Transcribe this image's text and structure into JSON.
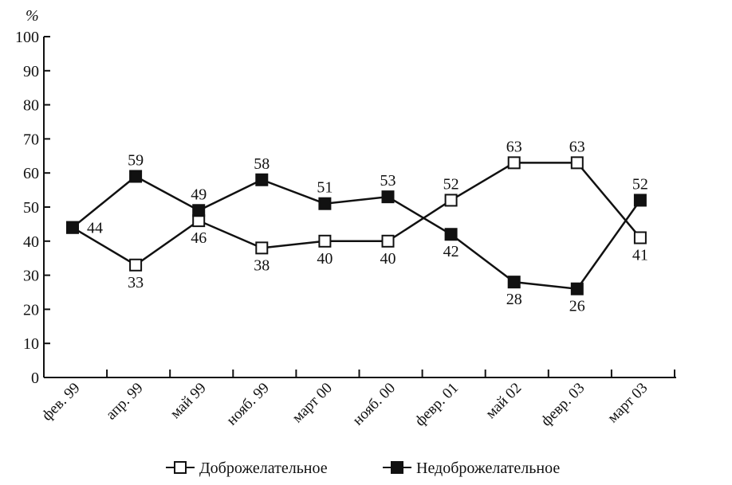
{
  "chart_data": {
    "type": "line",
    "y_unit": "%",
    "ylim": [
      0,
      100
    ],
    "yticks": [
      0,
      10,
      20,
      30,
      40,
      50,
      60,
      70,
      80,
      90,
      100
    ],
    "categories": [
      "фев. 99",
      "апр. 99",
      "май 99",
      "нояб. 99",
      "март 00",
      "нояб. 00",
      "февр. 01",
      "май 02",
      "февр. 03",
      "март 03"
    ],
    "grid": false,
    "legend": "bottom-center",
    "series": [
      {
        "name": "Доброжелательное",
        "marker": "open-square",
        "color": "#111111",
        "values": [
          44,
          33,
          46,
          38,
          40,
          40,
          52,
          63,
          63,
          41
        ]
      },
      {
        "name": "Недоброжелательное",
        "marker": "filled-square",
        "color": "#111111",
        "values": [
          44,
          59,
          49,
          58,
          51,
          53,
          42,
          28,
          26,
          52
        ]
      }
    ]
  }
}
